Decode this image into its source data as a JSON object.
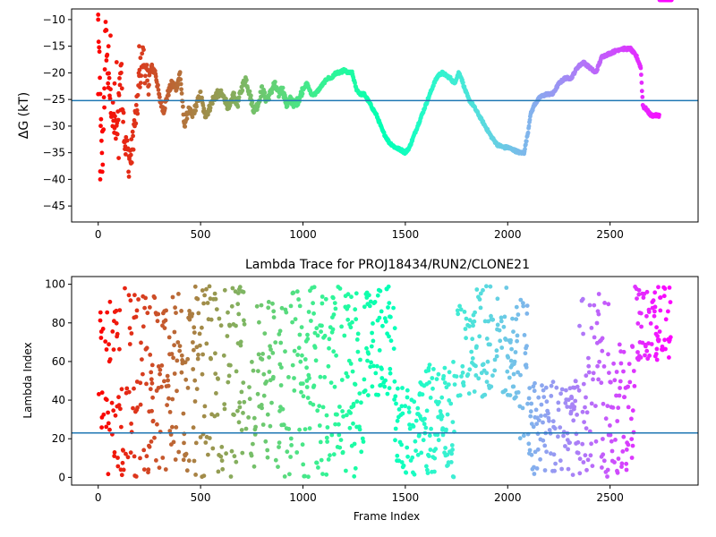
{
  "chart_data": [
    {
      "type": "scatter",
      "title": "",
      "xlabel": "",
      "ylabel": "ΔG (kT)",
      "xlim": [
        -130,
        2930
      ],
      "ylim": [
        -48,
        -8
      ],
      "xticks": [
        0,
        500,
        1000,
        1500,
        2000,
        2500
      ],
      "yticks": [
        -45,
        -40,
        -35,
        -30,
        -25,
        -20,
        -15,
        -10
      ],
      "colormap": "rainbow",
      "grid": false,
      "hline": {
        "y": -25.2,
        "color": "#1f77b4"
      },
      "anchors_x": [
        0,
        10,
        20,
        35,
        50,
        70,
        90,
        110,
        130,
        150,
        165,
        175,
        190,
        200,
        220,
        240,
        260,
        280,
        300,
        320,
        340,
        360,
        380,
        400,
        420,
        440,
        460,
        480,
        500,
        520,
        540,
        560,
        580,
        600,
        620,
        640,
        660,
        680,
        700,
        720,
        740,
        760,
        780,
        800,
        820,
        840,
        860,
        880,
        900,
        920,
        940,
        960,
        980,
        1000,
        1020,
        1040,
        1060,
        1080,
        1100,
        1120,
        1140,
        1160,
        1180,
        1200,
        1220,
        1240,
        1260,
        1280,
        1300,
        1330,
        1360,
        1390,
        1420,
        1450,
        1480,
        1500,
        1520,
        1540,
        1560,
        1580,
        1600,
        1620,
        1640,
        1660,
        1680,
        1700,
        1720,
        1740,
        1760,
        1770,
        1790,
        1810,
        1830,
        1860,
        1890,
        1920,
        1950,
        1980,
        2000,
        2030,
        2060,
        2080,
        2090,
        2100,
        2110,
        2130,
        2160,
        2190,
        2220,
        2250,
        2280,
        2310,
        2340,
        2370,
        2400,
        2430,
        2460,
        2490,
        2520,
        2550,
        2580,
        2600,
        2610,
        2620,
        2630,
        2640,
        2650,
        2660,
        2665,
        2670,
        2680,
        2700,
        2720,
        2740,
        2760,
        2780,
        2800
      ],
      "anchors_y": [
        -10,
        -25,
        -40,
        -12,
        -22,
        -28,
        -32,
        -18,
        -33,
        -36,
        -35,
        -30,
        -27,
        -21,
        -17,
        -22,
        -19,
        -20,
        -25,
        -27,
        -24,
        -22,
        -23,
        -20,
        -30,
        -27,
        -28,
        -26,
        -24,
        -28,
        -27,
        -25,
        -24,
        -24,
        -25,
        -27,
        -24,
        -26,
        -23,
        -21,
        -24,
        -27,
        -26,
        -23,
        -25,
        -24,
        -22,
        -24,
        -23,
        -26,
        -25,
        -26,
        -25,
        -23,
        -22,
        -24,
        -24,
        -23,
        -22,
        -21,
        -21,
        -20,
        -20,
        -19.5,
        -20,
        -20,
        -23,
        -24,
        -24,
        -26,
        -28,
        -31,
        -33,
        -34,
        -34.5,
        -35,
        -34,
        -32,
        -30,
        -28,
        -26,
        -24,
        -22,
        -20.5,
        -20,
        -20.5,
        -21,
        -22,
        -20,
        -20.5,
        -23,
        -25,
        -26,
        -28,
        -30,
        -32,
        -33.5,
        -34,
        -34,
        -34.5,
        -35,
        -35,
        -33,
        -31,
        -28,
        -26,
        -24.5,
        -24,
        -24,
        -22,
        -21,
        -21,
        -19,
        -18,
        -19,
        -20,
        -17,
        -16.5,
        -16,
        -15.5,
        -15.5,
        -15.5,
        -16,
        -16.5,
        -17,
        -18,
        -19,
        -26,
        -26.5,
        -26.5,
        -27,
        -28,
        -28,
        -28
      ],
      "scatter_points": [
        [
          0,
          -10
        ],
        [
          0,
          -24
        ],
        [
          10,
          -38.5
        ],
        [
          10,
          -40
        ],
        [
          20,
          -31
        ],
        [
          30,
          -26.5
        ],
        [
          40,
          -12
        ],
        [
          50,
          -15
        ],
        [
          60,
          -13
        ],
        [
          70,
          -30
        ],
        [
          80,
          -22
        ],
        [
          90,
          -18
        ],
        [
          100,
          -36
        ],
        [
          110,
          -27
        ],
        [
          130,
          -33
        ],
        [
          150,
          -39.5
        ],
        [
          160,
          -37
        ],
        [
          200,
          -15
        ]
      ]
    },
    {
      "type": "scatter",
      "title": "Lambda Trace for PROJ18434/RUN2/CLONE21",
      "xlabel": "Frame Index",
      "ylabel": "Lambda Index",
      "xlim": [
        -130,
        2930
      ],
      "ylim": [
        -4,
        104
      ],
      "xticks": [
        0,
        500,
        1000,
        1500,
        2000,
        2500
      ],
      "yticks": [
        0,
        20,
        40,
        60,
        80,
        100
      ],
      "colormap": "rainbow",
      "grid": false,
      "hline": {
        "y": 23,
        "color": "#1f77b4"
      },
      "segments": [
        {
          "x": [
            0,
            1000
          ],
          "y": [
            0,
            99
          ],
          "note": "uniform"
        },
        {
          "x": [
            1000,
            1300
          ],
          "y": [
            0,
            99
          ]
        },
        {
          "x": [
            1300,
            1500
          ],
          "y": [
            40,
            99
          ]
        },
        {
          "x": [
            1450,
            1600
          ],
          "y": [
            0,
            50
          ]
        },
        {
          "x": [
            1600,
            1750
          ],
          "y": [
            0,
            60
          ]
        },
        {
          "x": [
            1750,
            2050
          ],
          "y": [
            40,
            99
          ]
        },
        {
          "x": [
            2050,
            2100
          ],
          "y": [
            20,
            99
          ]
        },
        {
          "x": [
            2100,
            2350
          ],
          "y": [
            0,
            50
          ]
        },
        {
          "x": [
            2350,
            2500
          ],
          "y": [
            0,
            95
          ]
        },
        {
          "x": [
            2500,
            2620
          ],
          "y": [
            0,
            70
          ]
        },
        {
          "x": [
            2620,
            2800
          ],
          "y": [
            60,
            99
          ]
        }
      ]
    }
  ]
}
